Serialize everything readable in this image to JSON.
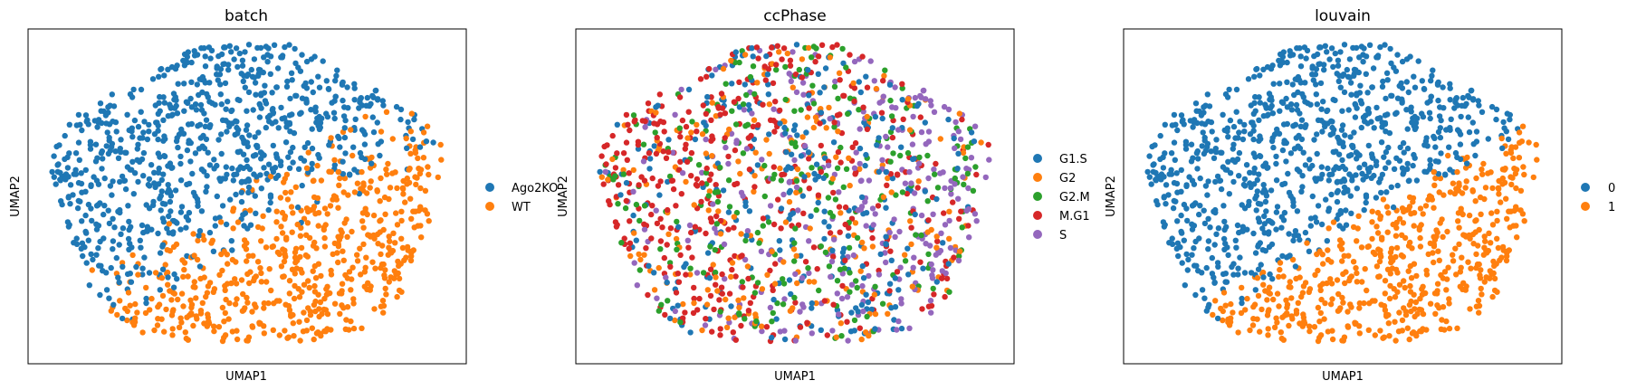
{
  "chart_data": [
    {
      "type": "scatter",
      "title": "batch",
      "xlabel": "UMAP1",
      "ylabel": "UMAP2",
      "grid": false,
      "legend_position": "right",
      "series": [
        {
          "name": "Ago2KO",
          "color": "#1f77b4"
        },
        {
          "name": "WT",
          "color": "#ff7f0e"
        }
      ],
      "coloring": "Ago2KO in upper-left region, WT in lower-right region"
    },
    {
      "type": "scatter",
      "title": "ccPhase",
      "xlabel": "UMAP1",
      "ylabel": "UMAP2",
      "grid": false,
      "legend_position": "right",
      "series": [
        {
          "name": "G1.S",
          "color": "#1f77b4"
        },
        {
          "name": "G2",
          "color": "#ff7f0e"
        },
        {
          "name": "G2.M",
          "color": "#2ca02c"
        },
        {
          "name": "M.G1",
          "color": "#d62728"
        },
        {
          "name": "S",
          "color": "#9467bd"
        }
      ],
      "coloring": "categories intermixed; M.G1 concentrated left, S concentrated right"
    },
    {
      "type": "scatter",
      "title": "louvain",
      "xlabel": "UMAP1",
      "ylabel": "UMAP2",
      "grid": false,
      "legend_position": "right",
      "series": [
        {
          "name": "0",
          "color": "#1f77b4"
        },
        {
          "name": "1",
          "color": "#ff7f0e"
        }
      ],
      "coloring": "cluster 0 upper-left, cluster 1 lower-right"
    }
  ]
}
